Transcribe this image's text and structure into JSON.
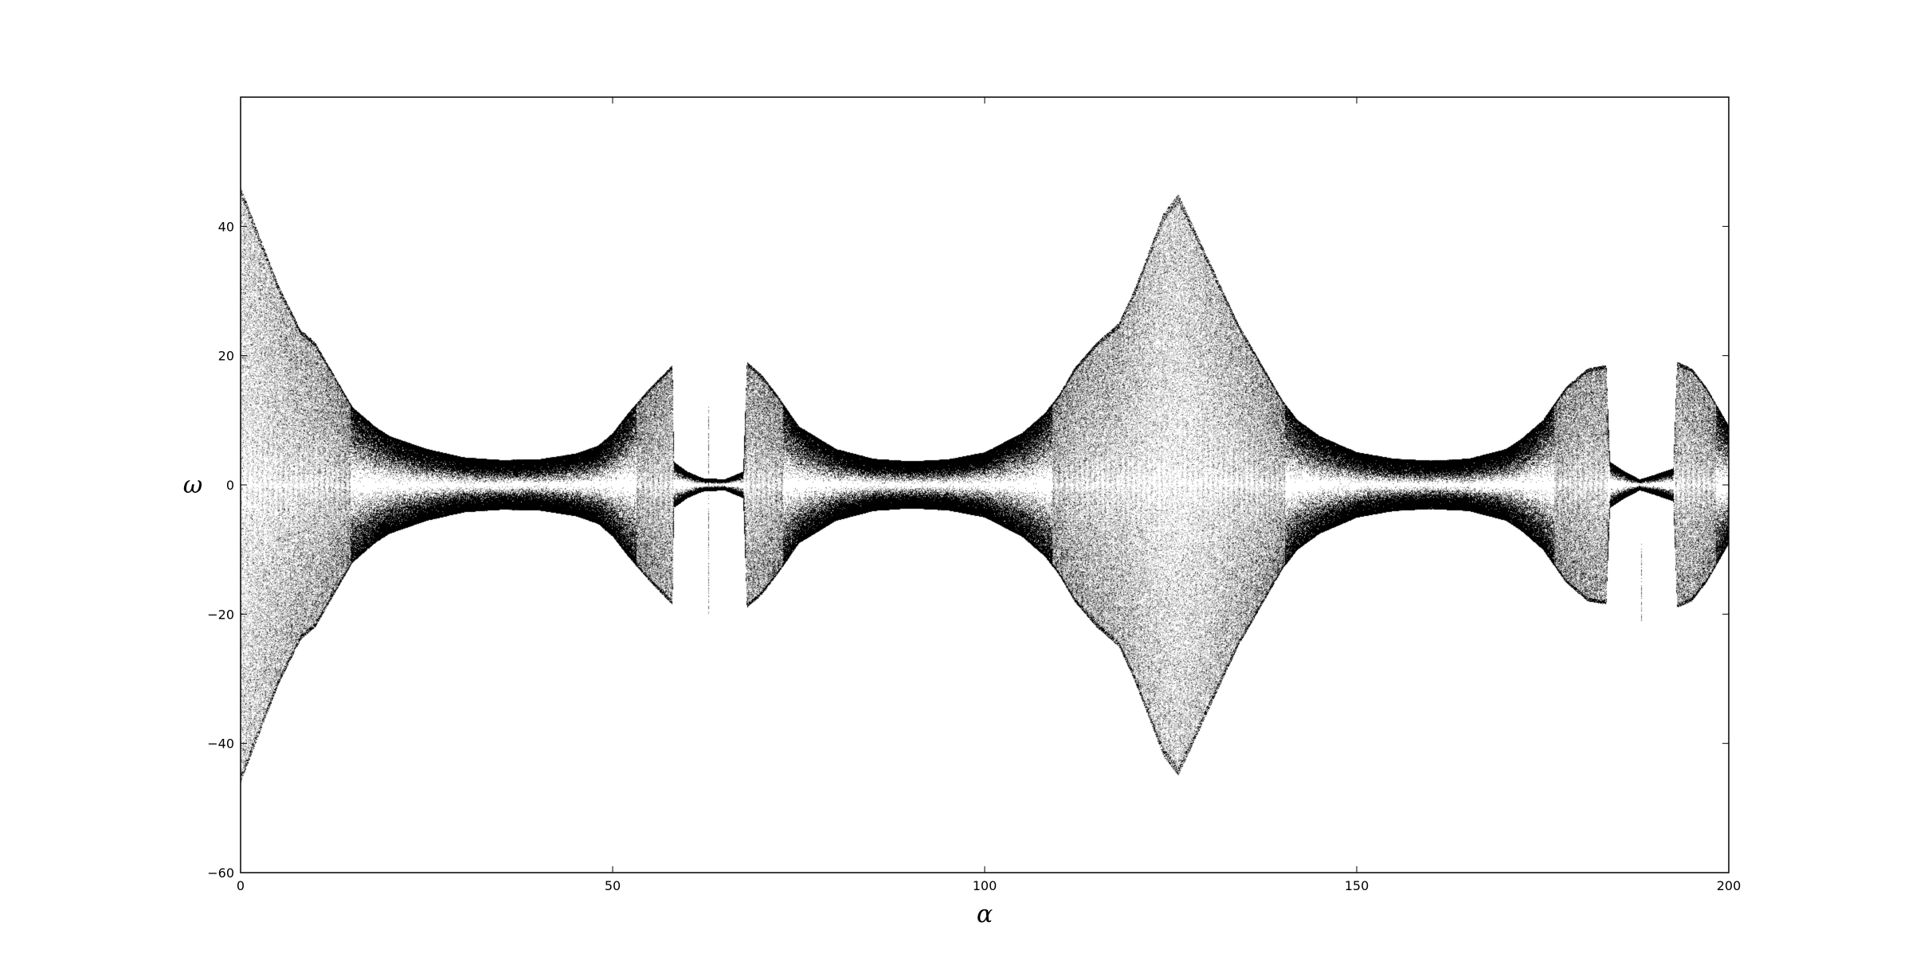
{
  "chart_data": {
    "type": "scatter",
    "title": "",
    "xlabel": "α",
    "ylabel": "ω",
    "xlim": [
      0,
      200
    ],
    "ylim": [
      -60,
      60
    ],
    "xticks": [
      0,
      50,
      100,
      150,
      200
    ],
    "yticks": [
      -60,
      -40,
      -20,
      0,
      20,
      40
    ],
    "xtick_labels": [
      "0",
      "50",
      "100",
      "150",
      "200"
    ],
    "ytick_labels": [
      "−60",
      "−40",
      "−20",
      "0",
      "20",
      "40"
    ],
    "grid": false,
    "legend": false,
    "point_color": "#000000",
    "background_color": "#ffffff",
    "envelope": {
      "alpha": [
        0,
        2,
        5,
        8,
        10,
        12,
        15,
        18,
        20,
        25,
        30,
        35,
        40,
        45,
        48,
        50,
        52,
        55,
        58,
        58.2,
        60,
        62,
        65,
        67.5,
        68,
        70,
        72,
        75,
        80,
        85,
        90,
        95,
        100,
        105,
        108,
        110,
        112,
        115,
        118,
        120,
        122,
        124,
        126,
        128,
        130,
        132,
        134,
        136,
        138,
        140,
        142,
        145,
        150,
        155,
        160,
        165,
        170,
        172,
        175,
        178,
        181,
        183.5,
        184,
        186,
        188,
        190,
        192.5,
        193,
        195,
        197,
        200
      ],
      "omega_max": [
        46,
        40,
        31,
        24,
        22,
        18,
        12,
        9,
        7.5,
        5.5,
        4.2,
        3.8,
        3.9,
        4.8,
        6,
        8,
        11,
        15,
        18.5,
        3.5,
        2,
        1,
        0.8,
        2,
        19,
        17,
        14,
        9,
        5.5,
        4,
        3.6,
        3.9,
        5,
        8,
        11,
        14,
        18,
        22,
        25,
        30,
        36,
        42,
        45,
        40,
        35,
        30,
        25,
        21,
        17,
        13,
        10,
        7.5,
        5,
        4,
        3.7,
        4,
        5.5,
        7,
        10,
        15,
        18,
        18.5,
        3.5,
        2,
        0.8,
        1.5,
        2.5,
        19,
        18,
        15,
        9
      ]
    },
    "series": [
      {
        "name": "",
        "description_points": "dense bifurcation-style scatter of omega values vs alpha"
      }
    ]
  }
}
